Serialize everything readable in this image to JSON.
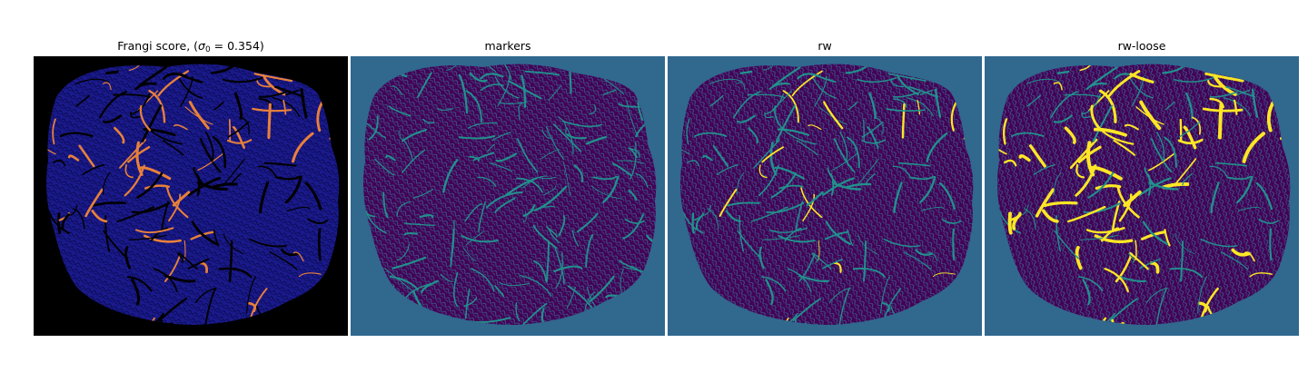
{
  "figure": {
    "panels": [
      {
        "id": "frangi",
        "title_prefix": "Frangi score, (",
        "title_symbol": "σ",
        "title_subscript": "0",
        "title_suffix": " = 0.354)",
        "background_color": "#000000",
        "tissue_color": "#1a1a8c",
        "texture_color": "#0a0a55",
        "vessel_color": "#e8803a",
        "colormap": "plasma"
      },
      {
        "id": "markers",
        "title": "markers",
        "background_color": "#31688e",
        "tissue_color": "#440154",
        "texture_color": "#3b528b",
        "vessel_color": "#21918c",
        "colormap": "viridis"
      },
      {
        "id": "rw",
        "title": "rw",
        "background_color": "#31688e",
        "tissue_color": "#440154",
        "texture_color": "#3b528b",
        "vessel_color": "#21918c",
        "highlight_color": "#fde725",
        "colormap": "viridis"
      },
      {
        "id": "rw-loose",
        "title": "rw-loose",
        "background_color": "#31688e",
        "tissue_color": "#440154",
        "texture_color": "#3b528b",
        "vessel_color": "#21918c",
        "highlight_color": "#fde725",
        "colormap": "viridis"
      }
    ]
  }
}
